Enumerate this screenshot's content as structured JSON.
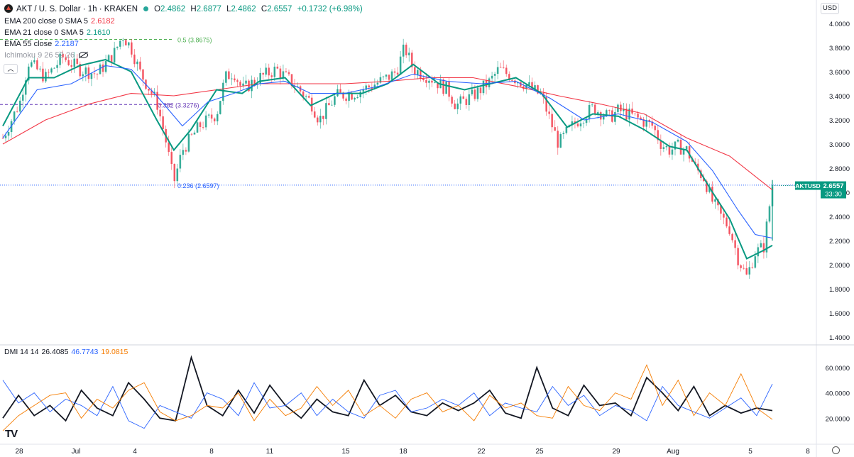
{
  "header": {
    "symbol_line": "AKT / U. S. Dollar · 1h · KRAKEN",
    "o_label": "O",
    "o_value": "2.4862",
    "h_label": "H",
    "h_value": "2.6877",
    "l_label": "L",
    "l_value": "2.4862",
    "c_label": "C",
    "c_value": "2.6557",
    "change": "+0.1732 (+6.98%)"
  },
  "indicators": {
    "ema200_label": "EMA 200 close 0 SMA 5",
    "ema200_value": "2.6182",
    "ema200_color": "#f23645",
    "ema21_label": "EMA 21 close 0 SMA 5",
    "ema21_value": "2.1610",
    "ema21_color": "#089981",
    "ema55_label": "EMA 55 close",
    "ema55_value": "2.2187",
    "ema55_color": "#2962ff",
    "ichimoku_label": "Ichimoku 9 26 52 26"
  },
  "dmi": {
    "label": "DMI 14 14",
    "adx_value": "26.4085",
    "plus_value": "46.7743",
    "minus_value": "19.0815",
    "adx_color": "#131722",
    "plus_color": "#2962ff",
    "minus_color": "#f57c00",
    "y_ticks": [
      "60.0000",
      "40.0000",
      "20.0000"
    ]
  },
  "currency": "USD",
  "icons": [
    "kraken-logo-icon",
    "market-status-dot-icon",
    "eye-hidden-icon",
    "collapse-chevron-icon",
    "tradingview-logo-icon",
    "settings-icon"
  ],
  "chart_data": {
    "type": "candlestick",
    "symbol": "AKTUSD",
    "last_price": "2.6557",
    "countdown": "33:30",
    "y_ticks": [
      "4.0000",
      "3.8000",
      "3.6000",
      "3.4000",
      "3.2000",
      "3.0000",
      "2.8000",
      "2.6000",
      "2.4000",
      "2.2000",
      "2.0000",
      "1.8000",
      "1.6000",
      "1.4000"
    ],
    "ylim": [
      1.4,
      4.0
    ],
    "x_ticks": [
      "28",
      "Jul",
      "4",
      "8",
      "11",
      "15",
      "18",
      "22",
      "25",
      "29",
      "Aug",
      "5",
      "8"
    ],
    "fib_levels": [
      {
        "label": "0.5 (3.8675)",
        "value": 3.8675,
        "color": "#4caf50"
      },
      {
        "label": "0.382 (3.3276)",
        "value": 3.3276,
        "color": "#673ab7"
      },
      {
        "label": "0.236 (2.6597)",
        "value": 2.6597,
        "color": "#2962ff"
      }
    ],
    "price_path": [
      [
        0,
        3.05
      ],
      [
        2,
        3.35
      ],
      [
        3,
        3.68
      ],
      [
        5,
        3.55
      ],
      [
        7,
        3.72
      ],
      [
        9,
        3.62
      ],
      [
        11,
        3.58
      ],
      [
        13,
        3.75
      ],
      [
        14,
        3.9
      ],
      [
        15,
        3.8
      ],
      [
        16,
        3.6
      ],
      [
        18,
        3.35
      ],
      [
        19,
        3.05
      ],
      [
        20,
        2.68
      ],
      [
        21,
        2.95
      ],
      [
        23,
        3.15
      ],
      [
        25,
        3.25
      ],
      [
        26,
        3.55
      ],
      [
        27,
        3.6
      ],
      [
        28,
        3.45
      ],
      [
        30,
        3.55
      ],
      [
        32,
        3.62
      ],
      [
        34,
        3.5
      ],
      [
        36,
        3.35
      ],
      [
        37,
        3.2
      ],
      [
        39,
        3.4
      ],
      [
        41,
        3.42
      ],
      [
        43,
        3.48
      ],
      [
        45,
        3.55
      ],
      [
        46,
        3.6
      ],
      [
        47,
        3.8
      ],
      [
        48,
        3.62
      ],
      [
        50,
        3.55
      ],
      [
        52,
        3.45
      ],
      [
        53,
        3.32
      ],
      [
        55,
        3.4
      ],
      [
        57,
        3.52
      ],
      [
        58,
        3.62
      ],
      [
        59,
        3.58
      ],
      [
        61,
        3.5
      ],
      [
        63,
        3.4
      ],
      [
        64,
        3.2
      ],
      [
        65,
        3.0
      ],
      [
        66,
        3.1
      ],
      [
        67,
        3.18
      ],
      [
        69,
        3.3
      ],
      [
        71,
        3.22
      ],
      [
        72,
        3.28
      ],
      [
        74,
        3.22
      ],
      [
        76,
        3.15
      ],
      [
        77,
        3.0
      ],
      [
        78,
        2.95
      ],
      [
        79,
        2.98
      ],
      [
        80,
        2.95
      ],
      [
        81,
        2.8
      ],
      [
        82,
        2.72
      ],
      [
        83,
        2.52
      ],
      [
        84,
        2.4
      ],
      [
        85,
        2.3
      ],
      [
        86,
        2.05
      ],
      [
        87,
        1.9
      ],
      [
        88,
        2.1
      ],
      [
        89,
        2.15
      ],
      [
        90,
        2.66
      ]
    ],
    "series": [
      {
        "name": "EMA 200",
        "color": "#f23645",
        "path": [
          [
            0,
            3.0
          ],
          [
            5,
            3.2
          ],
          [
            10,
            3.33
          ],
          [
            15,
            3.42
          ],
          [
            20,
            3.4
          ],
          [
            25,
            3.45
          ],
          [
            30,
            3.5
          ],
          [
            35,
            3.5
          ],
          [
            40,
            3.5
          ],
          [
            45,
            3.52
          ],
          [
            50,
            3.55
          ],
          [
            55,
            3.55
          ],
          [
            60,
            3.48
          ],
          [
            65,
            3.4
          ],
          [
            70,
            3.33
          ],
          [
            75,
            3.25
          ],
          [
            80,
            3.05
          ],
          [
            85,
            2.9
          ],
          [
            90,
            2.62
          ]
        ]
      },
      {
        "name": "EMA 21",
        "color": "#089981",
        "path": [
          [
            0,
            3.15
          ],
          [
            3,
            3.55
          ],
          [
            6,
            3.55
          ],
          [
            9,
            3.65
          ],
          [
            12,
            3.7
          ],
          [
            15,
            3.6
          ],
          [
            18,
            3.2
          ],
          [
            20,
            2.95
          ],
          [
            22,
            3.12
          ],
          [
            25,
            3.45
          ],
          [
            28,
            3.42
          ],
          [
            30,
            3.52
          ],
          [
            33,
            3.55
          ],
          [
            36,
            3.32
          ],
          [
            39,
            3.42
          ],
          [
            42,
            3.42
          ],
          [
            45,
            3.5
          ],
          [
            48,
            3.66
          ],
          [
            51,
            3.5
          ],
          [
            54,
            3.45
          ],
          [
            57,
            3.5
          ],
          [
            60,
            3.55
          ],
          [
            63,
            3.42
          ],
          [
            66,
            3.14
          ],
          [
            69,
            3.25
          ],
          [
            72,
            3.23
          ],
          [
            75,
            3.12
          ],
          [
            78,
            2.98
          ],
          [
            80,
            2.95
          ],
          [
            83,
            2.6
          ],
          [
            85,
            2.38
          ],
          [
            87,
            2.05
          ],
          [
            89,
            2.12
          ],
          [
            90,
            2.16
          ]
        ]
      },
      {
        "name": "EMA 55",
        "color": "#2962ff",
        "path": [
          [
            0,
            3.05
          ],
          [
            4,
            3.45
          ],
          [
            8,
            3.5
          ],
          [
            12,
            3.65
          ],
          [
            15,
            3.62
          ],
          [
            18,
            3.4
          ],
          [
            21,
            3.15
          ],
          [
            24,
            3.35
          ],
          [
            27,
            3.42
          ],
          [
            30,
            3.5
          ],
          [
            33,
            3.52
          ],
          [
            36,
            3.42
          ],
          [
            40,
            3.42
          ],
          [
            44,
            3.48
          ],
          [
            48,
            3.58
          ],
          [
            52,
            3.52
          ],
          [
            56,
            3.5
          ],
          [
            60,
            3.52
          ],
          [
            64,
            3.38
          ],
          [
            68,
            3.2
          ],
          [
            72,
            3.25
          ],
          [
            76,
            3.18
          ],
          [
            80,
            3.02
          ],
          [
            83,
            2.78
          ],
          [
            86,
            2.45
          ],
          [
            88,
            2.25
          ],
          [
            90,
            2.22
          ]
        ]
      }
    ],
    "dmi_series": [
      {
        "name": "ADX",
        "values": [
          20,
          38,
          22,
          30,
          18,
          42,
          28,
          22,
          48,
          35,
          20,
          18,
          68,
          30,
          22,
          42,
          24,
          46,
          30,
          20,
          35,
          25,
          22,
          50,
          30,
          38,
          25,
          22,
          32,
          26,
          32,
          42,
          24,
          20,
          60,
          28,
          22,
          46,
          30,
          32,
          22,
          52,
          40,
          26,
          45,
          22,
          30,
          24,
          28,
          26
        ]
      },
      {
        "name": "+DI",
        "values": [
          50,
          32,
          40,
          25,
          35,
          30,
          22,
          45,
          18,
          12,
          30,
          25,
          20,
          40,
          35,
          22,
          48,
          28,
          30,
          40,
          22,
          35,
          25,
          20,
          38,
          42,
          25,
          28,
          35,
          30,
          40,
          22,
          32,
          28,
          25,
          45,
          30,
          38,
          22,
          30,
          26,
          18,
          45,
          30,
          25,
          20,
          28,
          36,
          22,
          47
        ]
      },
      {
        "name": "-DI",
        "values": [
          10,
          22,
          30,
          38,
          40,
          20,
          35,
          28,
          42,
          48,
          25,
          18,
          22,
          30,
          28,
          40,
          18,
          35,
          22,
          28,
          45,
          30,
          42,
          22,
          30,
          20,
          35,
          40,
          25,
          30,
          18,
          38,
          28,
          32,
          22,
          20,
          45,
          30,
          26,
          40,
          35,
          62,
          30,
          50,
          22,
          40,
          30,
          55,
          28,
          19
        ]
      }
    ]
  }
}
